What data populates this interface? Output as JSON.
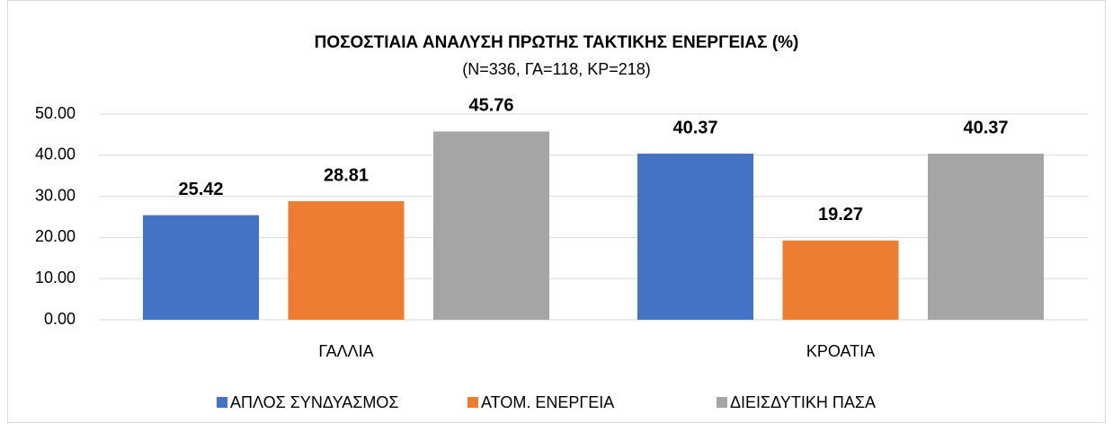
{
  "chart_data": {
    "type": "bar",
    "title": "ΠΟΣΟΣΤΙΑΙΑ ΑΝΑΛΥΣΗ ΠΡΩΤΗΣ ΤΑΚΤΙΚΗΣ ΕΝΕΡΓΕΙΑΣ (%)",
    "subtitle": "(N=336, ΓΑ=118, ΚΡ=218)",
    "categories": [
      "ΓΑΛΛΙΑ",
      "ΚΡΟΑΤΙΑ"
    ],
    "series": [
      {
        "name": "ΑΠΛΟΣ ΣΥΝΔΥΑΣΜΟΣ",
        "color": "#4472c4",
        "values": [
          25.42,
          40.37
        ]
      },
      {
        "name": "ΑΤΟΜ. ΕΝΕΡΓΕΙΑ",
        "color": "#ed7d31",
        "values": [
          28.81,
          19.27
        ]
      },
      {
        "name": "ΔΙΕΙΣΔΥΤΙΚΗ ΠΑΣΑ",
        "color": "#a5a5a5",
        "values": [
          45.76,
          40.37
        ]
      }
    ],
    "ylim": [
      0,
      50
    ],
    "yticks": [
      {
        "value": 0,
        "label": "0.00"
      },
      {
        "value": 10,
        "label": "10.00"
      },
      {
        "value": 20,
        "label": "20.00"
      },
      {
        "value": 30,
        "label": "30.00"
      },
      {
        "value": 40,
        "label": "40.00"
      },
      {
        "value": 50,
        "label": "50.00"
      }
    ],
    "grid": true,
    "legend": "bottom"
  }
}
